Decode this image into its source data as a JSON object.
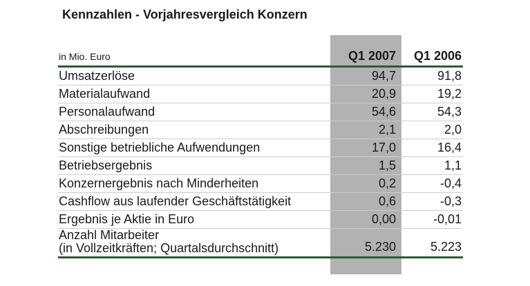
{
  "header": {
    "title": "Kennzahlen - Vorjahresvergleich Konzern"
  },
  "table": {
    "unit_label": "in Mio. Euro",
    "columns": [
      {
        "label": "Q1 2007",
        "highlighted": true
      },
      {
        "label": "Q1 2006",
        "highlighted": false
      }
    ],
    "rows": [
      {
        "label": "Umsatzerlöse",
        "q1_2007": "94,7",
        "q1_2006": "91,8"
      },
      {
        "label": "Materialaufwand",
        "q1_2007": "20,9",
        "q1_2006": "19,2"
      },
      {
        "label": "Personalaufwand",
        "q1_2007": "54,6",
        "q1_2006": "54,3"
      },
      {
        "label": "Abschreibungen",
        "q1_2007": "2,1",
        "q1_2006": "2,0"
      },
      {
        "label": "Sonstige betriebliche Aufwendungen",
        "q1_2007": "17,0",
        "q1_2006": "16,4"
      },
      {
        "label": "Betriebsergebnis",
        "q1_2007": "1,5",
        "q1_2006": "1,1"
      },
      {
        "label": "Konzernergebnis nach Minderheiten",
        "q1_2007": "0,2",
        "q1_2006": "-0,4"
      },
      {
        "label": "Cashflow aus laufender Geschäftstätigkeit",
        "q1_2007": "0,6",
        "q1_2006": "-0,3"
      },
      {
        "label": "Ergebnis je Aktie in Euro",
        "q1_2007": "0,00",
        "q1_2006": "-0,01"
      },
      {
        "label": "Anzahl Mitarbeiter\n(in Vollzeitkräften; Quartalsdurchschnitt)",
        "q1_2007": "5.230",
        "q1_2006": "5.223"
      }
    ]
  },
  "colors": {
    "highlight_band": "#b2b2b2",
    "rule_green": "#2d5a2d",
    "row_separator": "#cccccc",
    "text": "#1a1a1a"
  }
}
